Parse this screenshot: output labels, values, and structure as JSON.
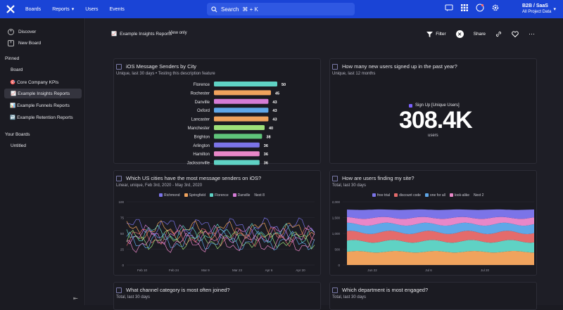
{
  "nav": {
    "boards": "Boards",
    "reports": "Reports",
    "users": "Users",
    "events": "Events",
    "search": "Search",
    "search_shortcut": "⌘ + K",
    "project_name": "B2B / SaaS",
    "project_sub": "All Project Data"
  },
  "sidebar": {
    "discover": "Discover",
    "new_board": "New Board",
    "pinned": "Pinned",
    "board": "Board",
    "pinned_items": [
      {
        "emoji": "🎯",
        "label": "Core Company KPIs"
      },
      {
        "emoji": "📈",
        "label": "Example Insights Reports"
      },
      {
        "emoji": "📊",
        "label": "Example Funnels Reports"
      },
      {
        "emoji": "↩️",
        "label": "Example Retention Reports"
      }
    ],
    "your_boards": "Your Boards",
    "untitled": "Untitled"
  },
  "header": {
    "emoji": "📈",
    "title": "Example Insights Reports",
    "view_only": "View only",
    "filter": "Filter",
    "share": "Share"
  },
  "cards": [
    {
      "title": "iOS Message Senders by City",
      "sub": "Unique, last 30 days • Testing this description feature"
    },
    {
      "title": "How many new users signed up in the past year?",
      "sub": "Unique, last 12 months"
    },
    {
      "title": "Which US cities have the most message senders on iOS?",
      "sub": "Linear, unique, Feb 3rd, 2020 - May 3rd, 2020"
    },
    {
      "title": "How are users finding my site?",
      "sub": "Total, last 30 days"
    },
    {
      "title": "What channel category is most often joined?",
      "sub": "Total, last 30 days"
    },
    {
      "title": "Which department is most engaged?",
      "sub": "Total, last 30 days"
    }
  ],
  "metric": {
    "label": "Sign Up [Unique Users]",
    "value": "308.4K",
    "unit": "users",
    "color": "#7b61ff"
  },
  "legends": {
    "cities": [
      {
        "name": "Richmond",
        "color": "#7b74e8"
      },
      {
        "name": "Springfield",
        "color": "#f0a35d"
      },
      {
        "name": "Florence",
        "color": "#5fd2c4"
      },
      {
        "name": "Danville",
        "color": "#d57cd6"
      }
    ],
    "cities_more": "Next 8",
    "sources": [
      {
        "name": "free trial",
        "color": "#7b74e8"
      },
      {
        "name": "discount code",
        "color": "#e46b6b"
      },
      {
        "name": "one for all",
        "color": "#5fa7e8"
      },
      {
        "name": "look-alike",
        "color": "#e887c8"
      }
    ],
    "sources_more": "Next 2"
  },
  "chart_data": [
    {
      "type": "bar",
      "categories": [
        "Florence",
        "Rochester",
        "Danville",
        "Oxford",
        "Lancaster",
        "Manchester",
        "Brighton",
        "Arlington",
        "Hamilton",
        "Jacksonville"
      ],
      "values": [
        50,
        45,
        43,
        43,
        43,
        40,
        38,
        36,
        36,
        36
      ],
      "colors": [
        "#5fd2c4",
        "#f0a35d",
        "#d57cd6",
        "#5fa7e8",
        "#f0a35d",
        "#9ee07a",
        "#5fc47a",
        "#7b74e8",
        "#e887c8",
        "#5fd2c4"
      ]
    },
    {
      "type": "line",
      "x": [
        "Feb 10",
        "Feb 24",
        "Mar 9",
        "Mar 23",
        "Apr 6",
        "Apr 20"
      ],
      "ylim": [
        0,
        100
      ],
      "yticks": [
        "0",
        "25",
        "50",
        "75",
        "100"
      ]
    },
    {
      "type": "area",
      "x": [
        "Jun 22",
        "Jul 6",
        "Jul 20"
      ],
      "ylim": [
        0,
        2000
      ],
      "yticks": [
        "0",
        "500",
        "1,000",
        "1,500",
        "2,000"
      ]
    }
  ]
}
